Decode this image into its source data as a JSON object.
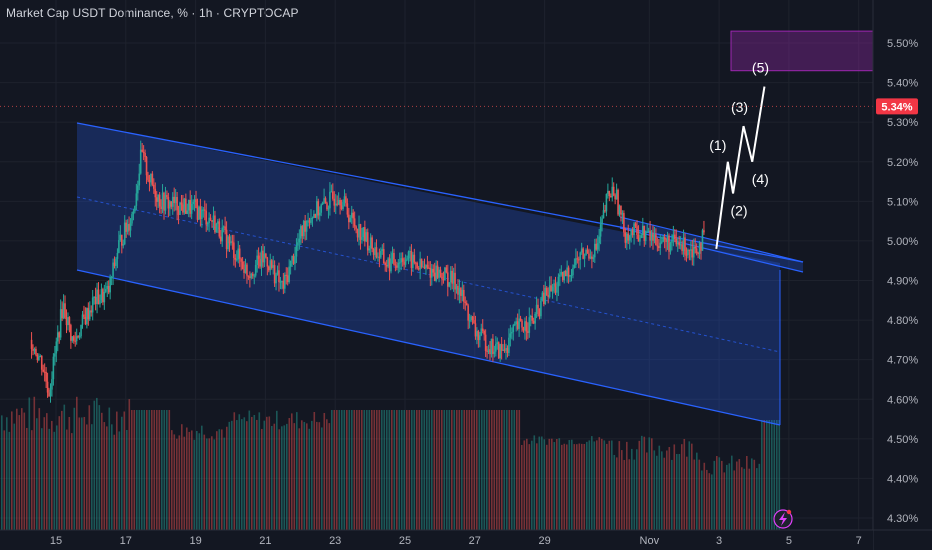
{
  "header": {
    "title": "Market Cap USDT Dominance, % · 1h · CRYPTOCAP",
    "unit_button": "%"
  },
  "price_badge": "5.34%",
  "colors": {
    "background": "#131722",
    "up": "#26a69a",
    "down": "#ef5350",
    "channel": "#2962ff",
    "target_box": "#9c27b0",
    "wave_line": "#ffffff"
  },
  "icons": {
    "bottom_right": "lightning-icon"
  },
  "chart_data": {
    "type": "candlestick",
    "interval": "1h",
    "ylim": [
      4.27,
      5.57
    ],
    "y_ticks": [
      "5.50%",
      "5.40%",
      "5.30%",
      "5.20%",
      "5.10%",
      "5.00%",
      "4.90%",
      "4.80%",
      "4.70%",
      "4.60%",
      "4.50%",
      "4.40%",
      "4.30%"
    ],
    "x_ticks": [
      "15",
      "17",
      "19",
      "21",
      "23",
      "25",
      "27",
      "29",
      "Nov",
      "3",
      "5",
      "7"
    ],
    "x_range_days": [
      14.3,
      7.9
    ],
    "series_close": [
      {
        "t": 14.3,
        "v": 4.75
      },
      {
        "t": 14.6,
        "v": 4.69
      },
      {
        "t": 14.8,
        "v": 4.62
      },
      {
        "t": 15.2,
        "v": 4.84
      },
      {
        "t": 15.5,
        "v": 4.74
      },
      {
        "t": 15.8,
        "v": 4.8
      },
      {
        "t": 16.1,
        "v": 4.85
      },
      {
        "t": 16.5,
        "v": 4.87
      },
      {
        "t": 16.8,
        "v": 4.99
      },
      {
        "t": 17.2,
        "v": 5.07
      },
      {
        "t": 17.45,
        "v": 5.22
      },
      {
        "t": 17.7,
        "v": 5.15
      },
      {
        "t": 18.0,
        "v": 5.1
      },
      {
        "t": 18.5,
        "v": 5.09
      },
      {
        "t": 19.0,
        "v": 5.08
      },
      {
        "t": 19.5,
        "v": 5.05
      },
      {
        "t": 20.0,
        "v": 4.99
      },
      {
        "t": 20.5,
        "v": 4.92
      },
      {
        "t": 21.0,
        "v": 4.96
      },
      {
        "t": 21.5,
        "v": 4.88
      },
      {
        "t": 21.8,
        "v": 4.96
      },
      {
        "t": 22.2,
        "v": 5.06
      },
      {
        "t": 22.7,
        "v": 5.09
      },
      {
        "t": 23.1,
        "v": 5.12
      },
      {
        "t": 23.5,
        "v": 5.05
      },
      {
        "t": 24.0,
        "v": 4.99
      },
      {
        "t": 24.5,
        "v": 4.94
      },
      {
        "t": 25.0,
        "v": 4.96
      },
      {
        "t": 25.5,
        "v": 4.93
      },
      {
        "t": 26.0,
        "v": 4.92
      },
      {
        "t": 26.5,
        "v": 4.89
      },
      {
        "t": 27.0,
        "v": 4.77
      },
      {
        "t": 27.5,
        "v": 4.73
      },
      {
        "t": 27.8,
        "v": 4.72
      },
      {
        "t": 28.2,
        "v": 4.78
      },
      {
        "t": 28.7,
        "v": 4.8
      },
      {
        "t": 29.0,
        "v": 4.86
      },
      {
        "t": 29.5,
        "v": 4.9
      },
      {
        "t": 30.0,
        "v": 4.96
      },
      {
        "t": 30.5,
        "v": 4.98
      },
      {
        "t": 30.8,
        "v": 5.11
      },
      {
        "t": 31.0,
        "v": 5.13
      },
      {
        "t": 31.3,
        "v": 5.02
      },
      {
        "t": 31.8,
        "v": 5.02
      },
      {
        "t": 32.3,
        "v": 5.0
      },
      {
        "t": 32.8,
        "v": 4.99
      },
      {
        "t": 33.3,
        "v": 4.98
      },
      {
        "t": 33.6,
        "v": 5.01
      }
    ],
    "elliott_wave": [
      {
        "label": "",
        "t": 33.92,
        "v": 4.98
      },
      {
        "label": "(1)",
        "t": 34.25,
        "v": 5.2
      },
      {
        "label": "(2)",
        "t": 34.4,
        "v": 5.12
      },
      {
        "label": "(3)",
        "t": 34.7,
        "v": 5.29
      },
      {
        "label": "(4)",
        "t": 34.95,
        "v": 5.2
      },
      {
        "label": "(5)",
        "t": 35.3,
        "v": 5.39
      }
    ],
    "target_zone": [
      5.43,
      5.53
    ],
    "last_price": 5.34
  }
}
